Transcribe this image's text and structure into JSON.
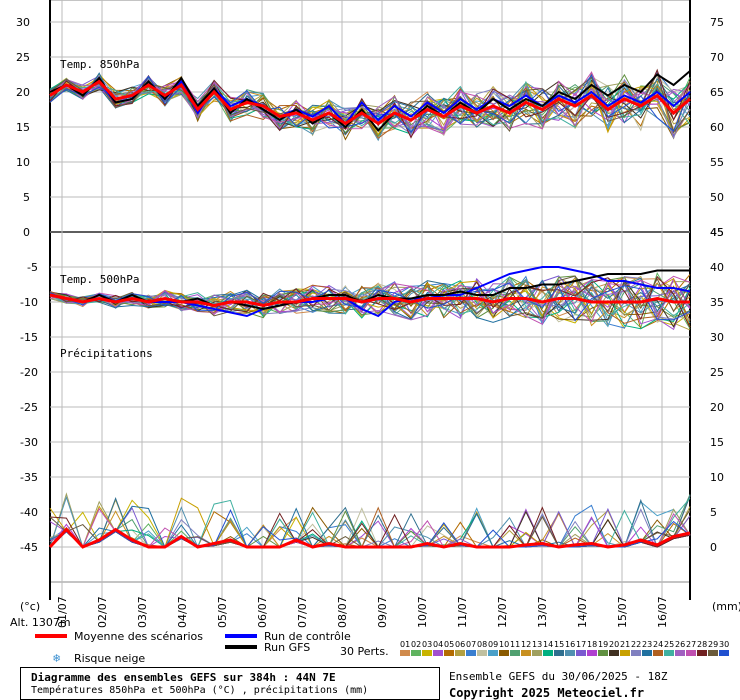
{
  "chart_data": {
    "type": "line",
    "title": "Diagramme des ensembles GEFS sur 384h : 44N 7E",
    "subtitle": "Températures 850hPa et 500hPa (°C) , précipitations (mm)",
    "run_info": "Ensemble GEFS du 30/06/2025 - 18Z",
    "copyright": "Copyright 2025 Meteociel.fr",
    "altitude": "Alt. 1307m",
    "left_unit": "(°c)",
    "right_unit": "(mm)",
    "panel_labels": {
      "t850": "Temp. 850hPa",
      "t500": "Temp. 500hPa",
      "precip": "Précipitations"
    },
    "top_panel": {
      "left_ticks": [
        "30",
        "25",
        "20",
        "15",
        "10",
        "5",
        "0"
      ],
      "right_ticks": [
        "75",
        "70",
        "65",
        "60",
        "55",
        "50",
        "45"
      ]
    },
    "bottom_panel": {
      "left_ticks": [
        "-5",
        "-10",
        "-15",
        "-20",
        "-25",
        "-30",
        "-35",
        "-40",
        "-45"
      ],
      "right_ticks": [
        "45",
        "40",
        "35",
        "30",
        "25",
        "20",
        "15",
        "10",
        "5",
        "0"
      ]
    },
    "dates": [
      "01/07",
      "02/07",
      "03/07",
      "04/07",
      "05/07",
      "06/07",
      "07/07",
      "08/07",
      "09/07",
      "10/07",
      "11/07",
      "12/07",
      "13/07",
      "14/07",
      "15/07",
      "16/07"
    ],
    "legend": {
      "mean": "Moyenne des scénarios",
      "control": "Run de contrôle",
      "gfs": "Run GFS",
      "snow": "Risque neige",
      "perts": "30 Perts.",
      "member_labels": [
        "01",
        "02",
        "03",
        "04",
        "05",
        "06",
        "07",
        "08",
        "09",
        "10",
        "11",
        "12",
        "13",
        "14",
        "15",
        "16",
        "17",
        "18",
        "19",
        "20",
        "21",
        "22",
        "23",
        "24",
        "25",
        "26",
        "27",
        "28",
        "29",
        "30"
      ],
      "member_colors": [
        "#d08a4c",
        "#5fb35f",
        "#c8b400",
        "#a24fcf",
        "#b36b00",
        "#b3a040",
        "#3a7fd0",
        "#c0c0a0",
        "#4aa0c8",
        "#8a5a00",
        "#50a070",
        "#c89020",
        "#a0a060",
        "#00b080",
        "#2f6f8f",
        "#5090b0",
        "#7a5ad0",
        "#b040d0",
        "#609040",
        "#403020",
        "#c8a000",
        "#8080c0",
        "#2070a0",
        "#b06020",
        "#40b0a0",
        "#a060c0",
        "#c050b0",
        "#702020",
        "#6a5a3a",
        "#2050d0"
      ]
    },
    "series_mean_850": [
      19.5,
      21,
      20,
      21.5,
      19,
      19.5,
      21,
      19.5,
      21,
      17.5,
      20,
      17.5,
      18.5,
      18,
      16.5,
      17,
      16,
      17,
      15.5,
      17,
      15.5,
      17,
      16,
      17.5,
      16.5,
      18,
      17,
      18,
      17,
      18.5,
      17.5,
      19,
      18,
      19.5,
      17.5,
      19,
      18,
      19.5,
      17,
      19
    ],
    "series_gfs_850": [
      20,
      21,
      19.5,
      22,
      18.5,
      19,
      21.5,
      19,
      22,
      18,
      20.5,
      17,
      19,
      17.5,
      16,
      17.5,
      15.5,
      17,
      15,
      17.5,
      14.5,
      17,
      16,
      18,
      16.5,
      18.5,
      17,
      19,
      17.5,
      19,
      18,
      20,
      19,
      21,
      19.5,
      21,
      20,
      22.5,
      21,
      23
    ],
    "series_control_850": [
      19.5,
      21,
      20,
      21.5,
      18.5,
      19,
      21.5,
      19,
      21.5,
      17,
      20.5,
      18,
      19,
      18,
      16.5,
      17.5,
      16.5,
      18,
      15.5,
      18.5,
      16,
      18,
      16.5,
      18.5,
      17,
      19,
      17.5,
      19,
      18,
      19.5,
      18,
      19.5,
      18.5,
      20,
      18,
      19.5,
      18.5,
      20,
      18,
      20
    ],
    "series_mean_500": [
      -9,
      -9.5,
      -10,
      -9.5,
      -10,
      -9.5,
      -10,
      -9.5,
      -10,
      -10,
      -10.5,
      -10,
      -10,
      -10.5,
      -10,
      -10,
      -9.5,
      -9.5,
      -9.5,
      -10,
      -9.5,
      -9.5,
      -10,
      -9.5,
      -9.5,
      -9.5,
      -9.5,
      -10,
      -9.5,
      -9.5,
      -10,
      -9.5,
      -9.5,
      -10,
      -10,
      -10,
      -10,
      -9.5,
      -10,
      -10
    ],
    "series_gfs_500": [
      -9,
      -9.5,
      -10,
      -9,
      -10,
      -9,
      -10,
      -9.5,
      -10,
      -9.5,
      -10.5,
      -10,
      -10.5,
      -11,
      -10.5,
      -10,
      -9.5,
      -9,
      -9,
      -10,
      -9,
      -9.5,
      -9.5,
      -9,
      -9,
      -8.5,
      -9,
      -9,
      -8,
      -8,
      -7.5,
      -7.5,
      -7,
      -6.5,
      -6,
      -6,
      -6,
      -5.5,
      -5.5,
      -5.5
    ],
    "series_control_500": [
      -9,
      -9.5,
      -10,
      -9.5,
      -10,
      -9.5,
      -10,
      -10,
      -10,
      -10.5,
      -11,
      -11.5,
      -12,
      -11,
      -10.5,
      -10,
      -10,
      -9.5,
      -9.5,
      -11,
      -12,
      -10,
      -9.5,
      -9.5,
      -9,
      -9,
      -8,
      -7,
      -6,
      -5.5,
      -5,
      -5,
      -5.5,
      -6,
      -7,
      -7,
      -7.5,
      -8,
      -8,
      -8.5
    ],
    "series_mean_precip": [
      0,
      2.5,
      0,
      1,
      2.5,
      1,
      0,
      0,
      1.5,
      0,
      0.5,
      1,
      0,
      0,
      0,
      1,
      0,
      0.5,
      0,
      0,
      0,
      0,
      0,
      0.5,
      0,
      0.5,
      0,
      0,
      0,
      0.3,
      0.5,
      0,
      0.3,
      0.5,
      0,
      0.3,
      1,
      0.3,
      1.5,
      2
    ]
  }
}
